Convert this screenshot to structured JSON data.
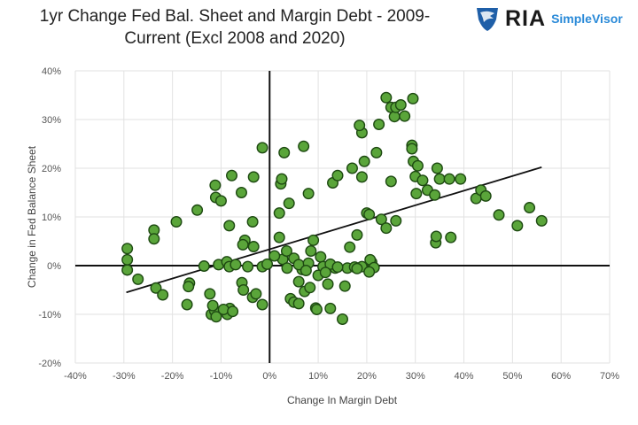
{
  "header": {
    "title_line1": "1yr Change Fed Bal. Sheet and Margin Debt - 2009-",
    "title_line2": "Current (Excl 2008 and 2020)",
    "logo_main": "RIA",
    "logo_sub": "SimpleVisor",
    "logo_icon": "eagle-shield-icon"
  },
  "chart_data": {
    "type": "scatter",
    "title": "1yr Change Fed Bal. Sheet and Margin Debt - 2009-Current (Excl 2008 and 2020)",
    "xlabel": "Change In Margin Debt",
    "ylabel": "Change in Fed Balance Sheet",
    "xlim": [
      -40,
      70
    ],
    "ylim": [
      -20,
      40
    ],
    "x_ticks": [
      "-40%",
      "-30%",
      "-20%",
      "-10%",
      "0%",
      "10%",
      "20%",
      "30%",
      "40%",
      "50%",
      "60%",
      "70%"
    ],
    "y_ticks": [
      "-20%",
      "-10%",
      "0%",
      "10%",
      "20%",
      "30%",
      "40%"
    ],
    "grid": true,
    "unit": "%",
    "colors": {
      "point_fill": "#5aa53a",
      "point_stroke": "#1e4a12",
      "trendline": "#111111"
    },
    "trendline": {
      "x": [
        -29.5,
        56
      ],
      "y": [
        -5.5,
        20.2
      ]
    },
    "points": [
      [
        -29.3,
        3.5
      ],
      [
        -29.3,
        1.2
      ],
      [
        -29.3,
        -0.9
      ],
      [
        -27.1,
        -2.8
      ],
      [
        -23.8,
        7.3
      ],
      [
        -23.8,
        5.5
      ],
      [
        -23.4,
        -4.6
      ],
      [
        -22,
        -6
      ],
      [
        -19.2,
        9
      ],
      [
        -16.5,
        -3.6
      ],
      [
        -16.7,
        -4.3
      ],
      [
        -17,
        -8
      ],
      [
        -14.9,
        11.4
      ],
      [
        -12.3,
        -5.8
      ],
      [
        -12,
        -10
      ],
      [
        -11.3,
        -9.3
      ],
      [
        -11,
        -10.5
      ],
      [
        -11.2,
        16.5
      ],
      [
        -11.1,
        14
      ],
      [
        -10,
        13.3
      ],
      [
        -10.5,
        0.2
      ],
      [
        -8.7,
        -10
      ],
      [
        -8.2,
        -8.8
      ],
      [
        -9.5,
        -9
      ],
      [
        -8.8,
        0.8
      ],
      [
        -8.3,
        -0.2
      ],
      [
        -7.8,
        18.5
      ],
      [
        -8.3,
        8.2
      ],
      [
        -7,
        0.2
      ],
      [
        -5.7,
        -3.5
      ],
      [
        -5.4,
        -5
      ],
      [
        -5.8,
        15
      ],
      [
        -5.1,
        5.2
      ],
      [
        -5.5,
        4.3
      ],
      [
        -4.5,
        -0.2
      ],
      [
        -3.3,
        18.2
      ],
      [
        -3.5,
        9
      ],
      [
        -3.3,
        3.9
      ],
      [
        -3.5,
        -6.5
      ],
      [
        -2.8,
        -5.8
      ],
      [
        -1.5,
        24.2
      ],
      [
        -1.5,
        -8
      ],
      [
        -1.5,
        -0.2
      ],
      [
        -0.5,
        0.3
      ],
      [
        -7.6,
        -9.4
      ],
      [
        -13.5,
        -0.1
      ],
      [
        -11.7,
        -8.2
      ],
      [
        2,
        10.8
      ],
      [
        2.3,
        16.8
      ],
      [
        2.5,
        17.8
      ],
      [
        3,
        23.2
      ],
      [
        2,
        5.8
      ],
      [
        2.7,
        1.3
      ],
      [
        3.5,
        3
      ],
      [
        4,
        12.8
      ],
      [
        4.3,
        -6.8
      ],
      [
        5,
        -7.5
      ],
      [
        6,
        -7.8
      ],
      [
        3.6,
        -0.5
      ],
      [
        6.7,
        -0.8
      ],
      [
        7,
        24.5
      ],
      [
        7.2,
        -5.3
      ],
      [
        8,
        14.8
      ],
      [
        8.3,
        -4.5
      ],
      [
        8.5,
        3
      ],
      [
        9,
        5.2
      ],
      [
        9.5,
        -8.7
      ],
      [
        9.7,
        -9
      ],
      [
        10.5,
        1.8
      ],
      [
        11,
        -0.2
      ],
      [
        12,
        -3.8
      ],
      [
        12.5,
        -8.8
      ],
      [
        13,
        17
      ],
      [
        13.5,
        -0.5
      ],
      [
        14,
        18.5
      ],
      [
        15,
        -11
      ],
      [
        15.5,
        -4.2
      ],
      [
        16.5,
        3.8
      ],
      [
        17,
        20
      ],
      [
        16,
        -0.5
      ],
      [
        17.5,
        -0.3
      ],
      [
        19,
        27.3
      ],
      [
        19.5,
        21.4
      ],
      [
        18.5,
        28.8
      ],
      [
        19,
        18.2
      ],
      [
        18,
        6.3
      ],
      [
        20,
        10.8
      ],
      [
        20.5,
        10.5
      ],
      [
        21,
        0.7
      ],
      [
        20.7,
        1.2
      ],
      [
        22,
        23.2
      ],
      [
        22.5,
        29
      ],
      [
        23,
        9.5
      ],
      [
        24,
        34.5
      ],
      [
        24,
        7.7
      ],
      [
        25,
        32.5
      ],
      [
        25,
        17.3
      ],
      [
        25.7,
        30.6
      ],
      [
        26,
        32.5
      ],
      [
        26,
        9.2
      ],
      [
        27,
        33
      ],
      [
        27.8,
        30.7
      ],
      [
        29.5,
        34.3
      ],
      [
        29.3,
        24.7
      ],
      [
        29.3,
        24
      ],
      [
        29.6,
        21.4
      ],
      [
        30,
        18.3
      ],
      [
        30.2,
        14.8
      ],
      [
        30.5,
        20.5
      ],
      [
        31.5,
        17.5
      ],
      [
        32.5,
        15.5
      ],
      [
        34,
        14.5
      ],
      [
        34.5,
        20
      ],
      [
        35,
        17.8
      ],
      [
        34.2,
        4.7
      ],
      [
        34.3,
        6
      ],
      [
        37,
        17.8
      ],
      [
        37.3,
        5.8
      ],
      [
        39.3,
        17.8
      ],
      [
        42.5,
        13.8
      ],
      [
        43.5,
        15.5
      ],
      [
        44.5,
        14.3
      ],
      [
        47.2,
        10.4
      ],
      [
        51,
        8.2
      ],
      [
        53.5,
        11.9
      ],
      [
        56,
        9.2
      ],
      [
        5,
        1.5
      ],
      [
        6,
        0.2
      ],
      [
        1,
        2
      ],
      [
        8,
        0.5
      ],
      [
        12.5,
        0.3
      ],
      [
        14,
        -0.3
      ],
      [
        19,
        -0.2
      ],
      [
        21.5,
        -0.4
      ],
      [
        18,
        -0.6
      ],
      [
        20.5,
        -1.3
      ],
      [
        10,
        -2
      ],
      [
        11.5,
        -1.4
      ],
      [
        6,
        -3.3
      ],
      [
        7.5,
        -1
      ]
    ]
  }
}
